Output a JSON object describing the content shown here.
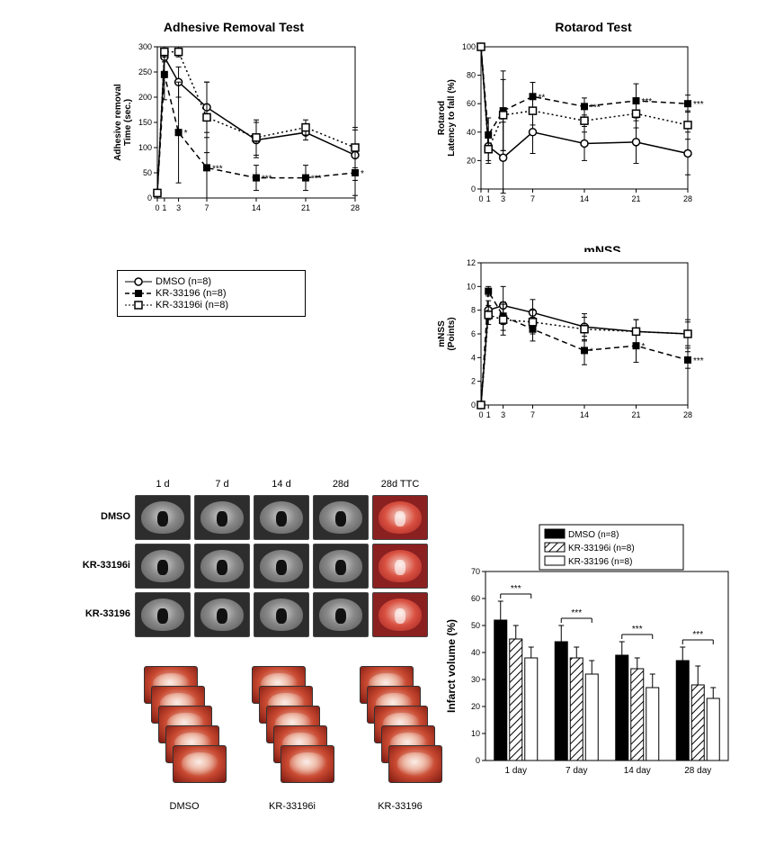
{
  "colors": {
    "black": "#000000",
    "white": "#ffffff",
    "bg": "#ffffff"
  },
  "legend_series": {
    "items": [
      {
        "label": "DMSO (n=8)",
        "marker": "open-circle",
        "line": "solid"
      },
      {
        "label": "KR-33196 (n=8)",
        "marker": "filled-square",
        "line": "dashed"
      },
      {
        "label": "KR-33196i (n=8)",
        "marker": "open-square",
        "line": "dotted"
      }
    ]
  },
  "adhesive": {
    "title": "Adhesive Removal Test",
    "ylabel": "Adhesive removal\nTime (sec.)",
    "ylim": [
      0,
      300
    ],
    "ytick_step": 50,
    "xticks": [
      0,
      1,
      3,
      7,
      14,
      21,
      28
    ],
    "series": {
      "dmso": {
        "y": [
          10,
          280,
          230,
          180,
          115,
          130,
          85
        ],
        "err": [
          0,
          10,
          30,
          50,
          35,
          15,
          50
        ]
      },
      "kr33196": {
        "y": [
          10,
          245,
          130,
          60,
          40,
          40,
          50
        ],
        "err": [
          0,
          50,
          100,
          60,
          25,
          25,
          45
        ],
        "sig": {
          "3": "*",
          "7": "***",
          "14": "***",
          "21": "***",
          "28": "*"
        }
      },
      "kr33196i": {
        "y": [
          10,
          290,
          290,
          160,
          120,
          140,
          100
        ],
        "err": [
          0,
          10,
          10,
          70,
          35,
          15,
          40
        ]
      }
    }
  },
  "rotarod": {
    "title": "Rotarod Test",
    "ylabel": "Rotarod\nLatency to fall (%)",
    "ylim": [
      0,
      100
    ],
    "ytick_step": 20,
    "xticks": [
      0,
      1,
      3,
      7,
      14,
      21,
      28
    ],
    "series": {
      "dmso": {
        "y": [
          100,
          30,
          22,
          40,
          32,
          33,
          25
        ],
        "err": [
          0,
          10,
          25,
          15,
          12,
          15,
          15
        ]
      },
      "kr33196": {
        "y": [
          100,
          38,
          55,
          65,
          58,
          62,
          60
        ],
        "err": [
          0,
          12,
          28,
          10,
          6,
          12,
          6
        ],
        "sig": {
          "7": "**",
          "14": "***",
          "21": "***",
          "28": "***"
        }
      },
      "kr33196i": {
        "y": [
          100,
          28,
          52,
          55,
          48,
          53,
          45
        ],
        "err": [
          0,
          10,
          25,
          10,
          8,
          10,
          10
        ]
      }
    }
  },
  "mnss": {
    "title": "mNSS",
    "ylabel": "mNSS\n(Points)",
    "ylim": [
      0,
      12
    ],
    "ytick_step": 2,
    "xticks": [
      0,
      1,
      3,
      7,
      14,
      21,
      28
    ],
    "series": {
      "dmso": {
        "y": [
          0,
          8.0,
          8.4,
          7.8,
          6.6,
          6.2,
          6.0
        ],
        "err": [
          0,
          0.8,
          1.6,
          1.1,
          1.1,
          1.0,
          1.2
        ]
      },
      "kr33196": {
        "y": [
          0,
          9.6,
          7.5,
          6.4,
          4.6,
          5.0,
          3.8
        ],
        "err": [
          0,
          0.4,
          1.2,
          1.0,
          1.2,
          1.4,
          0.7
        ],
        "sig": {
          "14": "*",
          "21": "*",
          "28": "***"
        }
      },
      "kr33196i": {
        "y": [
          0,
          7.6,
          7.2,
          7.0,
          6.4,
          6.2,
          6.0
        ],
        "err": [
          0,
          0.8,
          1.3,
          1.0,
          1.0,
          1.0,
          1.0
        ]
      }
    }
  },
  "brain_grid": {
    "col_labels": [
      "1 d",
      "7 d",
      "14 d",
      "28d",
      "28d TTC"
    ],
    "row_labels": [
      "DMSO",
      "KR-33196i",
      "KR-33196"
    ]
  },
  "stack_labels": [
    "DMSO",
    "KR-33196i",
    "KR-33196"
  ],
  "infarct": {
    "title": "",
    "ylabel": "Infarct volume (%)",
    "ylim": [
      0,
      70
    ],
    "ytick_step": 10,
    "xticks": [
      "1 day",
      "7 day",
      "14 day",
      "28 day"
    ],
    "legend": [
      {
        "label": "DMSO (n=8)",
        "fill": "solid"
      },
      {
        "label": "KR-33196i (n=8)",
        "fill": "hatch"
      },
      {
        "label": "KR-33196 (n=8)",
        "fill": "open"
      }
    ],
    "data": {
      "1 day": {
        "dmso": 52,
        "i": 45,
        "kr": 38,
        "err": [
          7,
          5,
          4
        ],
        "sig": "***"
      },
      "7 day": {
        "dmso": 44,
        "i": 38,
        "kr": 32,
        "err": [
          6,
          4,
          5
        ],
        "sig": "***"
      },
      "14 day": {
        "dmso": 39,
        "i": 34,
        "kr": 27,
        "err": [
          5,
          4,
          5
        ],
        "sig": "***"
      },
      "28 day": {
        "dmso": 37,
        "i": 28,
        "kr": 23,
        "err": [
          5,
          7,
          4
        ],
        "sig": "***"
      }
    }
  },
  "typography": {
    "title_fontsize": 14,
    "axis_label_fontsize": 10,
    "tick_fontsize": 9,
    "legend_fontsize": 11
  }
}
